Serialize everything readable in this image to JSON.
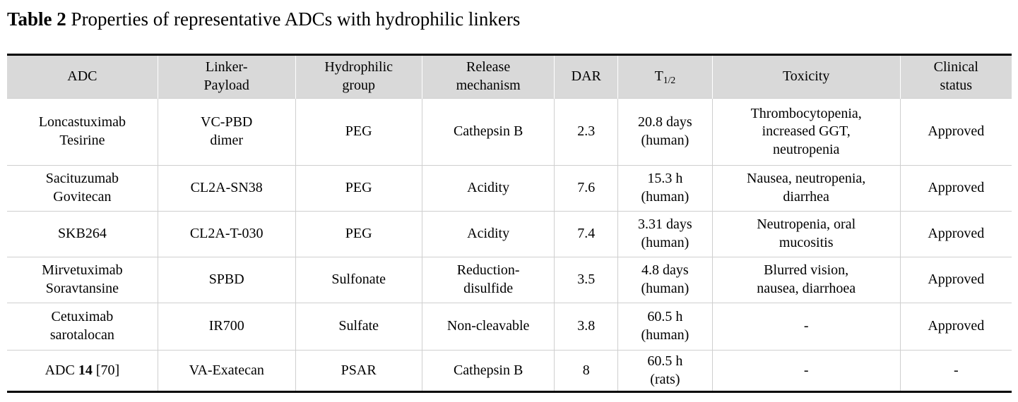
{
  "caption": {
    "label": "Table 2",
    "text": " Properties of representative ADCs with hydrophilic linkers"
  },
  "table": {
    "columns": [
      {
        "key": "adc",
        "label": "ADC"
      },
      {
        "key": "linker-payload",
        "label": "Linker-\nPayload"
      },
      {
        "key": "hydrophilic-group",
        "label": "Hydrophilic\ngroup"
      },
      {
        "key": "release-mechanism",
        "label": "Release\nmechanism"
      },
      {
        "key": "dar",
        "label": "DAR"
      },
      {
        "key": "half-life",
        "label": "T_{1/2}"
      },
      {
        "key": "toxicity",
        "label": "Toxicity"
      },
      {
        "key": "clinical-status",
        "label": "Clinical\nstatus"
      }
    ],
    "rows": [
      [
        "Loncastuximab\nTesirine",
        "VC-PBD\ndimer",
        "PEG",
        "Cathepsin B",
        "2.3",
        "20.8 days\n(human)",
        "Thrombocytopenia,\nincreased GGT,\nneutropenia",
        "Approved"
      ],
      [
        "Sacituzumab\nGovitecan",
        "CL2A-SN38",
        "PEG",
        "Acidity",
        "7.6",
        "15.3 h\n(human)",
        "Nausea, neutropenia,\ndiarrhea",
        "Approved"
      ],
      [
        "SKB264",
        "CL2A-T-030",
        "PEG",
        "Acidity",
        "7.4",
        "3.31 days\n(human)",
        "Neutropenia, oral\nmucositis",
        "Approved"
      ],
      [
        "Mirvetuximab\nSoravtansine",
        "SPBD",
        "Sulfonate",
        "Reduction-\ndisulfide",
        "3.5",
        "4.8 days\n(human)",
        "Blurred vision,\nnausea, diarrhoea",
        "Approved"
      ],
      [
        "Cetuximab\nsarotalocan",
        "IR700",
        "Sulfate",
        "Non-cleavable",
        "3.8",
        "60.5 h\n(human)",
        "-",
        "Approved"
      ],
      [
        "ADC **14** [70]",
        "VA-Exatecan",
        "PSAR",
        "Cathepsin B",
        "8",
        "60.5 h\n(rats)",
        "-",
        "-"
      ]
    ],
    "colors": {
      "header_background": "#d9d9d9",
      "grid_line": "#cfcfcf",
      "outer_rule": "#000000",
      "text": "#000000"
    }
  }
}
